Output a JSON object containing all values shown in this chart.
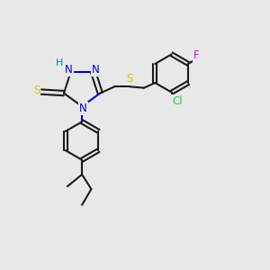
{
  "bg_color": "#e8e8e8",
  "bond_color": "#1a1a1a",
  "N_color": "#0000ee",
  "S_color": "#cccc00",
  "Cl_color": "#33cc33",
  "F_color": "#ee00ee",
  "H_color": "#008888",
  "line_width": 1.5,
  "fig_size": [
    3.0,
    3.0
  ],
  "dpi": 100,
  "xlim": [
    0,
    10
  ],
  "ylim": [
    0,
    10
  ]
}
